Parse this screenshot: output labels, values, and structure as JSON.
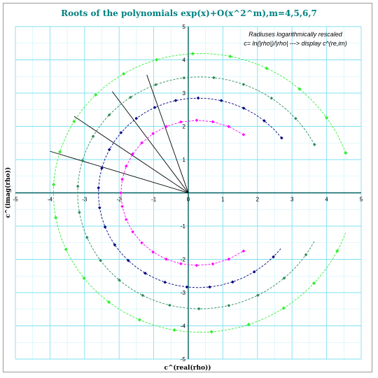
{
  "chart_data": {
    "type": "scatter",
    "title": "Roots of the polynomials exp(x)+O(x^2^m),m=4,5,6,7",
    "xlabel": "c^(real(rho))",
    "ylabel": "c^(imag(rho))",
    "xlim": [
      -5,
      5
    ],
    "ylim": [
      -5,
      5
    ],
    "x_ticks": [
      "-5",
      "-4",
      "-3",
      "-2",
      "-1",
      "0",
      "1",
      "2",
      "3",
      "4",
      "5"
    ],
    "y_ticks": [
      "5",
      "4",
      "3",
      "2",
      "1",
      "0",
      "-1",
      "-2",
      "-3",
      "-4",
      "-5"
    ],
    "grid": true,
    "annotation": [
      "Radiuses logarithmically rescaled",
      "c= ln(|rho|)/|rho|   --->  display  c^(re,im)"
    ],
    "series": [
      {
        "color": "#ff00ff",
        "points_per_arc": 22,
        "start": [
          1.6,
          1.75
        ],
        "end": [
          1.6,
          -1.75
        ],
        "radius": 1.95
      },
      {
        "color": "#000080",
        "points_per_arc": 45,
        "start": [
          2.7,
          1.65
        ],
        "end": [
          2.7,
          -1.65
        ],
        "radius": 2.6
      },
      {
        "color": "#2e8b57",
        "points_per_arc": 90,
        "start": [
          3.65,
          1.45
        ],
        "end": [
          3.65,
          -1.45
        ],
        "radius": 3.2
      },
      {
        "color": "#33ee33",
        "points_per_arc": 180,
        "start": [
          4.55,
          1.2
        ],
        "end": [
          4.55,
          -1.2
        ],
        "radius": 3.9
      }
    ],
    "rays": [
      {
        "from": [
          0,
          0
        ],
        "to": [
          -4.0,
          1.25
        ]
      },
      {
        "from": [
          0,
          0
        ],
        "to": [
          -3.3,
          2.3
        ]
      },
      {
        "from": [
          0,
          0
        ],
        "to": [
          -2.2,
          3.05
        ]
      },
      {
        "from": [
          0,
          0
        ],
        "to": [
          -1.2,
          3.55
        ]
      }
    ]
  }
}
